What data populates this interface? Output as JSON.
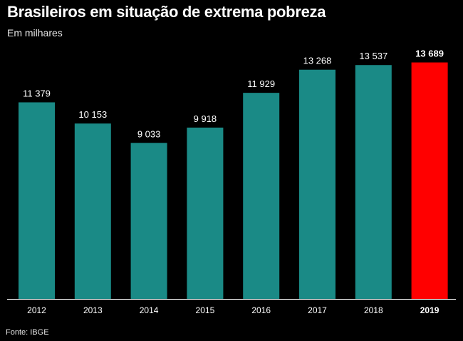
{
  "title": "Brasileiros em situação de extrema pobreza",
  "subtitle": "Em milhares",
  "source": "Fonte: IBGE",
  "colors": {
    "background": "#000000",
    "bar": "#1a8a86",
    "highlight": "#ff0000",
    "text": "#ffffff"
  },
  "chart_data": {
    "type": "bar",
    "title": "Brasileiros em situação de extrema pobreza",
    "subtitle": "Em milhares",
    "categories": [
      "2012",
      "2013",
      "2014",
      "2015",
      "2016",
      "2017",
      "2018",
      "2019"
    ],
    "values": [
      11379,
      10153,
      9033,
      9918,
      11929,
      13268,
      13537,
      13689
    ],
    "value_labels": [
      "11 379",
      "10 153",
      "9 033",
      "9 918",
      "11 929",
      "13 268",
      "13 537",
      "13 689"
    ],
    "highlighted": [
      "2019"
    ],
    "xlabel": "",
    "ylabel": "",
    "ylim": [
      0,
      14000
    ],
    "grid": false,
    "legend": "none"
  }
}
